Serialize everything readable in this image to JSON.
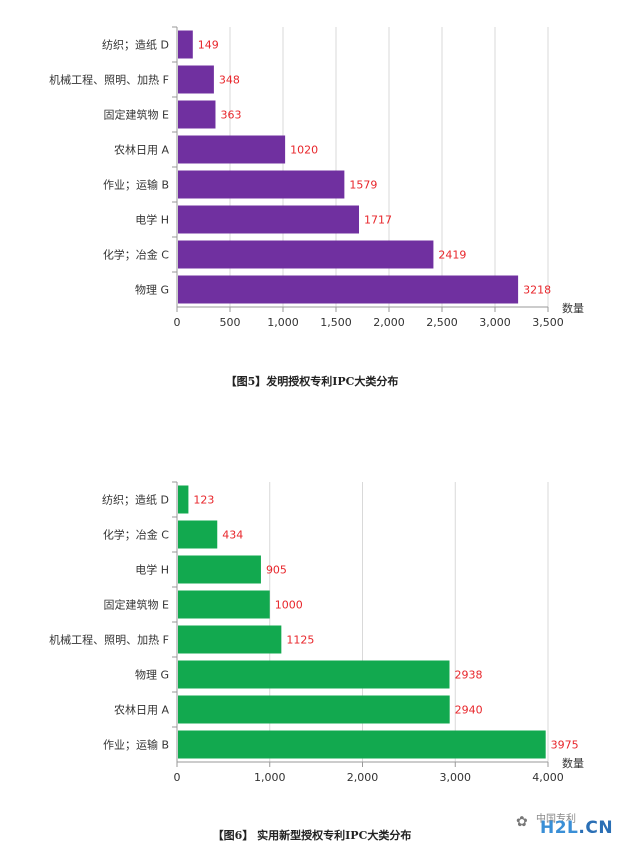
{
  "colors": {
    "chart1_bar": "#7030a0",
    "chart2_bar": "#12a94f",
    "value_label": "#e8262b",
    "grid": "#d9d9d9",
    "axis_text": "#333333"
  },
  "captions": {
    "chart1": "【图5】发明授权专利IPC大类分布",
    "chart2": "【图6】 实用新型授权专利IPC大类分布"
  },
  "watermark": {
    "text": "中国专利",
    "logo_main": "H2L",
    "logo_suffix": ".CN",
    "icon": "wechat-icon"
  },
  "chart_data": [
    {
      "type": "bar",
      "orientation": "horizontal",
      "categories": [
        "纺织；造纸 D",
        "机械工程、照明、加热 F",
        "固定建筑物 E",
        "农林日用 A",
        "作业；运输 B",
        "电学 H",
        "化学；冶金 C",
        "物理 G"
      ],
      "values": [
        149,
        348,
        363,
        1020,
        1579,
        1717,
        2419,
        3218
      ],
      "data_labels": [
        "149",
        "348",
        "363",
        "1020",
        "1579",
        "1717",
        "2419",
        "3218"
      ],
      "xlabel": "数量",
      "xlim": [
        0,
        3500
      ],
      "xticks": [
        "0",
        "500",
        "1,000",
        "1,500",
        "2,000",
        "2,500",
        "3,000",
        "3,500"
      ],
      "grid": true,
      "legend": "none"
    },
    {
      "type": "bar",
      "orientation": "horizontal",
      "categories": [
        "纺织；造纸 D",
        "化学；冶金 C",
        "电学 H",
        "固定建筑物 E",
        "机械工程、照明、加热 F",
        "物理 G",
        "农林日用 A",
        "作业；运输 B"
      ],
      "values": [
        123,
        434,
        905,
        1000,
        1125,
        2938,
        2940,
        3975
      ],
      "data_labels": [
        "123",
        "434",
        "905",
        "1000",
        "1125",
        "2938",
        "2940",
        "3975"
      ],
      "xlabel": "数量",
      "xlim": [
        0,
        4000
      ],
      "xticks": [
        "0",
        "1,000",
        "2,000",
        "3,000",
        "4,000"
      ],
      "grid": true,
      "legend": "none"
    }
  ]
}
